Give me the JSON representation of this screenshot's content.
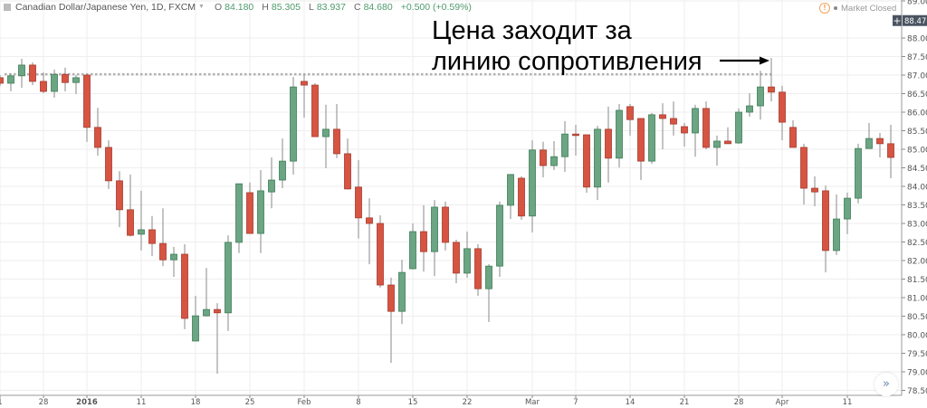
{
  "header": {
    "symbol_title": "Canadian Dollar/Japanese Yen, 1D, FXCM",
    "open_label": "O",
    "open": "84.180",
    "high_label": "H",
    "high": "85.305",
    "low_label": "L",
    "low": "83.937",
    "close_label": "C",
    "close": "84.680",
    "change": "+0.500 (+0.59%)"
  },
  "market_status": "Market Closed",
  "annotation": {
    "line1": "Цена заходит за",
    "line2": "линию сопротивления"
  },
  "scroll_button_label": "»",
  "colors": {
    "up": "#6ba583",
    "up_border": "#3f7d58",
    "down": "#d75442",
    "down_border": "#a53a2d",
    "grid": "#eeeeee",
    "resistance": "#b0b0b0",
    "price_badge": "#4a5460"
  },
  "icons": {
    "header": "symbol-square-icon",
    "status": "info-circle-icon",
    "scroll": "double-chevron-right-icon"
  },
  "chart_data": {
    "type": "candlestick",
    "ohlc_order": [
      "open",
      "high",
      "low",
      "close"
    ],
    "ohlc": [
      [
        86.93,
        87.0,
        86.7,
        86.78
      ],
      [
        86.78,
        87.05,
        86.56,
        86.98
      ],
      [
        86.98,
        87.44,
        86.66,
        87.27
      ],
      [
        87.27,
        87.34,
        86.73,
        86.83
      ],
      [
        86.83,
        87.07,
        86.51,
        86.56
      ],
      [
        86.56,
        87.15,
        86.39,
        87.02
      ],
      [
        87.02,
        87.2,
        86.56,
        86.8
      ],
      [
        86.8,
        87.0,
        86.49,
        86.93
      ],
      [
        87.0,
        87.02,
        85.2,
        85.59
      ],
      [
        85.59,
        86.12,
        84.83,
        85.05
      ],
      [
        85.05,
        85.24,
        83.93,
        84.15
      ],
      [
        84.15,
        84.41,
        82.9,
        83.37
      ],
      [
        83.37,
        84.32,
        82.65,
        82.68
      ],
      [
        82.71,
        83.88,
        82.27,
        82.83
      ],
      [
        82.83,
        83.2,
        82.12,
        82.46
      ],
      [
        82.46,
        83.41,
        81.85,
        82.02
      ],
      [
        82.02,
        82.37,
        81.56,
        82.17
      ],
      [
        82.17,
        82.44,
        80.15,
        80.44
      ],
      [
        79.83,
        81.05,
        79.83,
        80.51
      ],
      [
        80.51,
        81.8,
        80.49,
        80.68
      ],
      [
        80.68,
        80.85,
        78.95,
        80.59
      ],
      [
        80.59,
        82.68,
        80.1,
        82.49
      ],
      [
        82.49,
        84.07,
        82.2,
        84.07
      ],
      [
        83.83,
        84.1,
        82.73,
        82.73
      ],
      [
        82.73,
        84.44,
        82.2,
        83.88
      ],
      [
        83.85,
        84.78,
        83.41,
        84.17
      ],
      [
        84.17,
        85.29,
        83.95,
        84.68
      ],
      [
        84.68,
        86.95,
        84.32,
        86.68
      ],
      [
        86.83,
        87.02,
        85.85,
        86.73
      ],
      [
        86.73,
        86.78,
        85.34,
        85.34
      ],
      [
        85.34,
        86.2,
        84.49,
        85.54
      ],
      [
        85.54,
        86.22,
        84.76,
        84.88
      ],
      [
        84.88,
        85.29,
        83.93,
        83.93
      ],
      [
        83.98,
        84.71,
        82.59,
        83.15
      ],
      [
        83.15,
        83.68,
        81.9,
        83.0
      ],
      [
        83.0,
        83.22,
        81.27,
        81.34
      ],
      [
        81.34,
        81.54,
        79.24,
        80.63
      ],
      [
        80.63,
        82.02,
        80.29,
        81.68
      ],
      [
        81.78,
        83.0,
        81.76,
        82.78
      ],
      [
        82.78,
        83.49,
        81.7,
        82.24
      ],
      [
        82.24,
        83.63,
        81.58,
        83.44
      ],
      [
        83.44,
        83.59,
        82.27,
        82.49
      ],
      [
        82.49,
        82.56,
        81.39,
        81.66
      ],
      [
        81.66,
        82.78,
        81.54,
        82.32
      ],
      [
        82.32,
        82.44,
        81.05,
        81.24
      ],
      [
        81.24,
        81.9,
        80.34,
        81.85
      ],
      [
        81.85,
        83.59,
        81.56,
        83.49
      ],
      [
        83.49,
        84.32,
        83.12,
        84.32
      ],
      [
        84.22,
        84.27,
        83.1,
        83.2
      ],
      [
        83.2,
        85.24,
        82.76,
        84.98
      ],
      [
        84.98,
        85.2,
        84.24,
        84.56
      ],
      [
        84.56,
        85.22,
        84.44,
        84.8
      ],
      [
        84.8,
        85.76,
        84.39,
        85.41
      ],
      [
        85.41,
        85.66,
        84.83,
        85.37
      ],
      [
        85.39,
        85.39,
        83.83,
        83.98
      ],
      [
        83.98,
        85.63,
        83.63,
        85.54
      ],
      [
        85.54,
        86.15,
        84.1,
        84.76
      ],
      [
        84.76,
        86.22,
        84.51,
        86.05
      ],
      [
        86.15,
        86.22,
        85.37,
        85.8
      ],
      [
        85.83,
        85.83,
        84.17,
        84.68
      ],
      [
        84.68,
        85.98,
        84.61,
        85.93
      ],
      [
        85.93,
        86.24,
        85.0,
        85.83
      ],
      [
        85.83,
        86.29,
        85.37,
        85.68
      ],
      [
        85.61,
        85.71,
        85.07,
        85.44
      ],
      [
        85.44,
        86.2,
        84.8,
        86.1
      ],
      [
        86.1,
        86.29,
        85.0,
        85.05
      ],
      [
        85.05,
        85.37,
        84.56,
        85.22
      ],
      [
        85.22,
        85.59,
        85.15,
        85.15
      ],
      [
        85.17,
        86.1,
        85.15,
        86.0
      ],
      [
        86.0,
        86.51,
        85.88,
        86.17
      ],
      [
        86.17,
        87.12,
        85.8,
        86.68
      ],
      [
        86.68,
        87.46,
        86.29,
        86.54
      ],
      [
        86.54,
        86.71,
        85.24,
        85.73
      ],
      [
        85.59,
        85.78,
        85.05,
        85.05
      ],
      [
        85.05,
        85.15,
        83.51,
        83.95
      ],
      [
        83.95,
        84.27,
        83.46,
        83.85
      ],
      [
        83.88,
        84.02,
        81.68,
        82.27
      ],
      [
        82.27,
        83.78,
        82.15,
        83.12
      ],
      [
        83.12,
        83.83,
        82.71,
        83.68
      ],
      [
        83.68,
        85.15,
        83.54,
        85.02
      ],
      [
        85.02,
        85.71,
        85.02,
        85.29
      ],
      [
        85.29,
        85.44,
        84.78,
        85.15
      ],
      [
        85.15,
        85.66,
        84.22,
        84.78
      ]
    ],
    "x_ticks": [
      {
        "label": "1",
        "bar": 0
      },
      {
        "label": "28",
        "bar": 4
      },
      {
        "label": "2016",
        "bar": 8
      },
      {
        "label": "11",
        "bar": 13
      },
      {
        "label": "18",
        "bar": 18
      },
      {
        "label": "25",
        "bar": 23
      },
      {
        "label": "Feb",
        "bar": 28
      },
      {
        "label": "8",
        "bar": 33
      },
      {
        "label": "15",
        "bar": 38
      },
      {
        "label": "22",
        "bar": 43
      },
      {
        "label": "Mar",
        "bar": 49
      },
      {
        "label": "7",
        "bar": 53
      },
      {
        "label": "14",
        "bar": 58
      },
      {
        "label": "21",
        "bar": 63
      },
      {
        "label": "28",
        "bar": 68
      },
      {
        "label": "Apr",
        "bar": 72
      },
      {
        "label": "11",
        "bar": 78
      }
    ],
    "y_ticks": [
      "89.000",
      "88.000",
      "87.500",
      "87.000",
      "86.500",
      "86.000",
      "85.500",
      "85.000",
      "84.500",
      "84.000",
      "83.500",
      "83.000",
      "82.500",
      "82.000",
      "81.500",
      "81.000",
      "80.500",
      "80.000",
      "79.500",
      "79.000",
      "78.500"
    ],
    "ylim": [
      78.5,
      89.0
    ],
    "last_price": "88.470",
    "resistance_level": 87.02,
    "grid": true
  }
}
